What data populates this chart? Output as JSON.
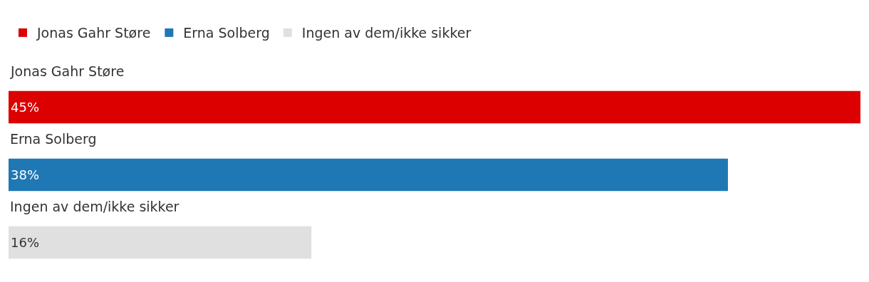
{
  "chart_data": {
    "type": "bar",
    "orientation": "horizontal",
    "categories": [
      "Jonas Gahr Støre",
      "Erna Solberg",
      "Ingen av dem/ikke sikker"
    ],
    "series": [
      {
        "name": "Jonas Gahr Støre",
        "color": "#dc0000",
        "values": [
          45,
          null,
          null
        ],
        "value_labels": [
          "45%",
          null,
          null
        ]
      },
      {
        "name": "Erna Solberg",
        "color": "#1f78b4",
        "values": [
          null,
          38,
          null
        ],
        "value_labels": [
          null,
          "38%",
          null
        ]
      },
      {
        "name": "Ingen av dem/ikke sikker",
        "color": "#e0e0e0",
        "values": [
          null,
          null,
          16
        ],
        "value_labels": [
          null,
          null,
          "16%"
        ]
      }
    ],
    "legend": "top left",
    "tick_labels": false
  }
}
